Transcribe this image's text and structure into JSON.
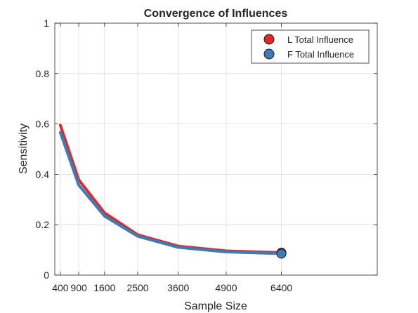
{
  "chart_data": {
    "type": "line",
    "title": "Convergence of Influences",
    "xlabel": "Sample Size",
    "ylabel": "Sensitivity",
    "xlim": [
      250,
      9000
    ],
    "ylim": [
      0,
      1
    ],
    "xticks": [
      400,
      900,
      1600,
      2500,
      3600,
      4900,
      6400
    ],
    "xtick_labels": [
      "400",
      "900",
      "1600",
      "2500",
      "3600",
      "4900",
      "6400"
    ],
    "yticks": [
      0,
      0.2,
      0.4,
      0.6,
      0.8,
      1
    ],
    "ytick_labels": [
      "0",
      "0.2",
      "0.4",
      "0.6",
      "0.8",
      "1"
    ],
    "grid": true,
    "legend_position": "top-right",
    "x": [
      400,
      900,
      1600,
      2500,
      3600,
      4900,
      6400
    ],
    "series": [
      {
        "name": "L Total Influence",
        "color": "#e02a2a",
        "values": [
          0.595,
          0.378,
          0.247,
          0.16,
          0.115,
          0.096,
          0.089
        ]
      },
      {
        "name": "F Total Influence",
        "color": "#3d7db7",
        "values": [
          0.566,
          0.357,
          0.234,
          0.154,
          0.11,
          0.092,
          0.085
        ]
      }
    ]
  }
}
